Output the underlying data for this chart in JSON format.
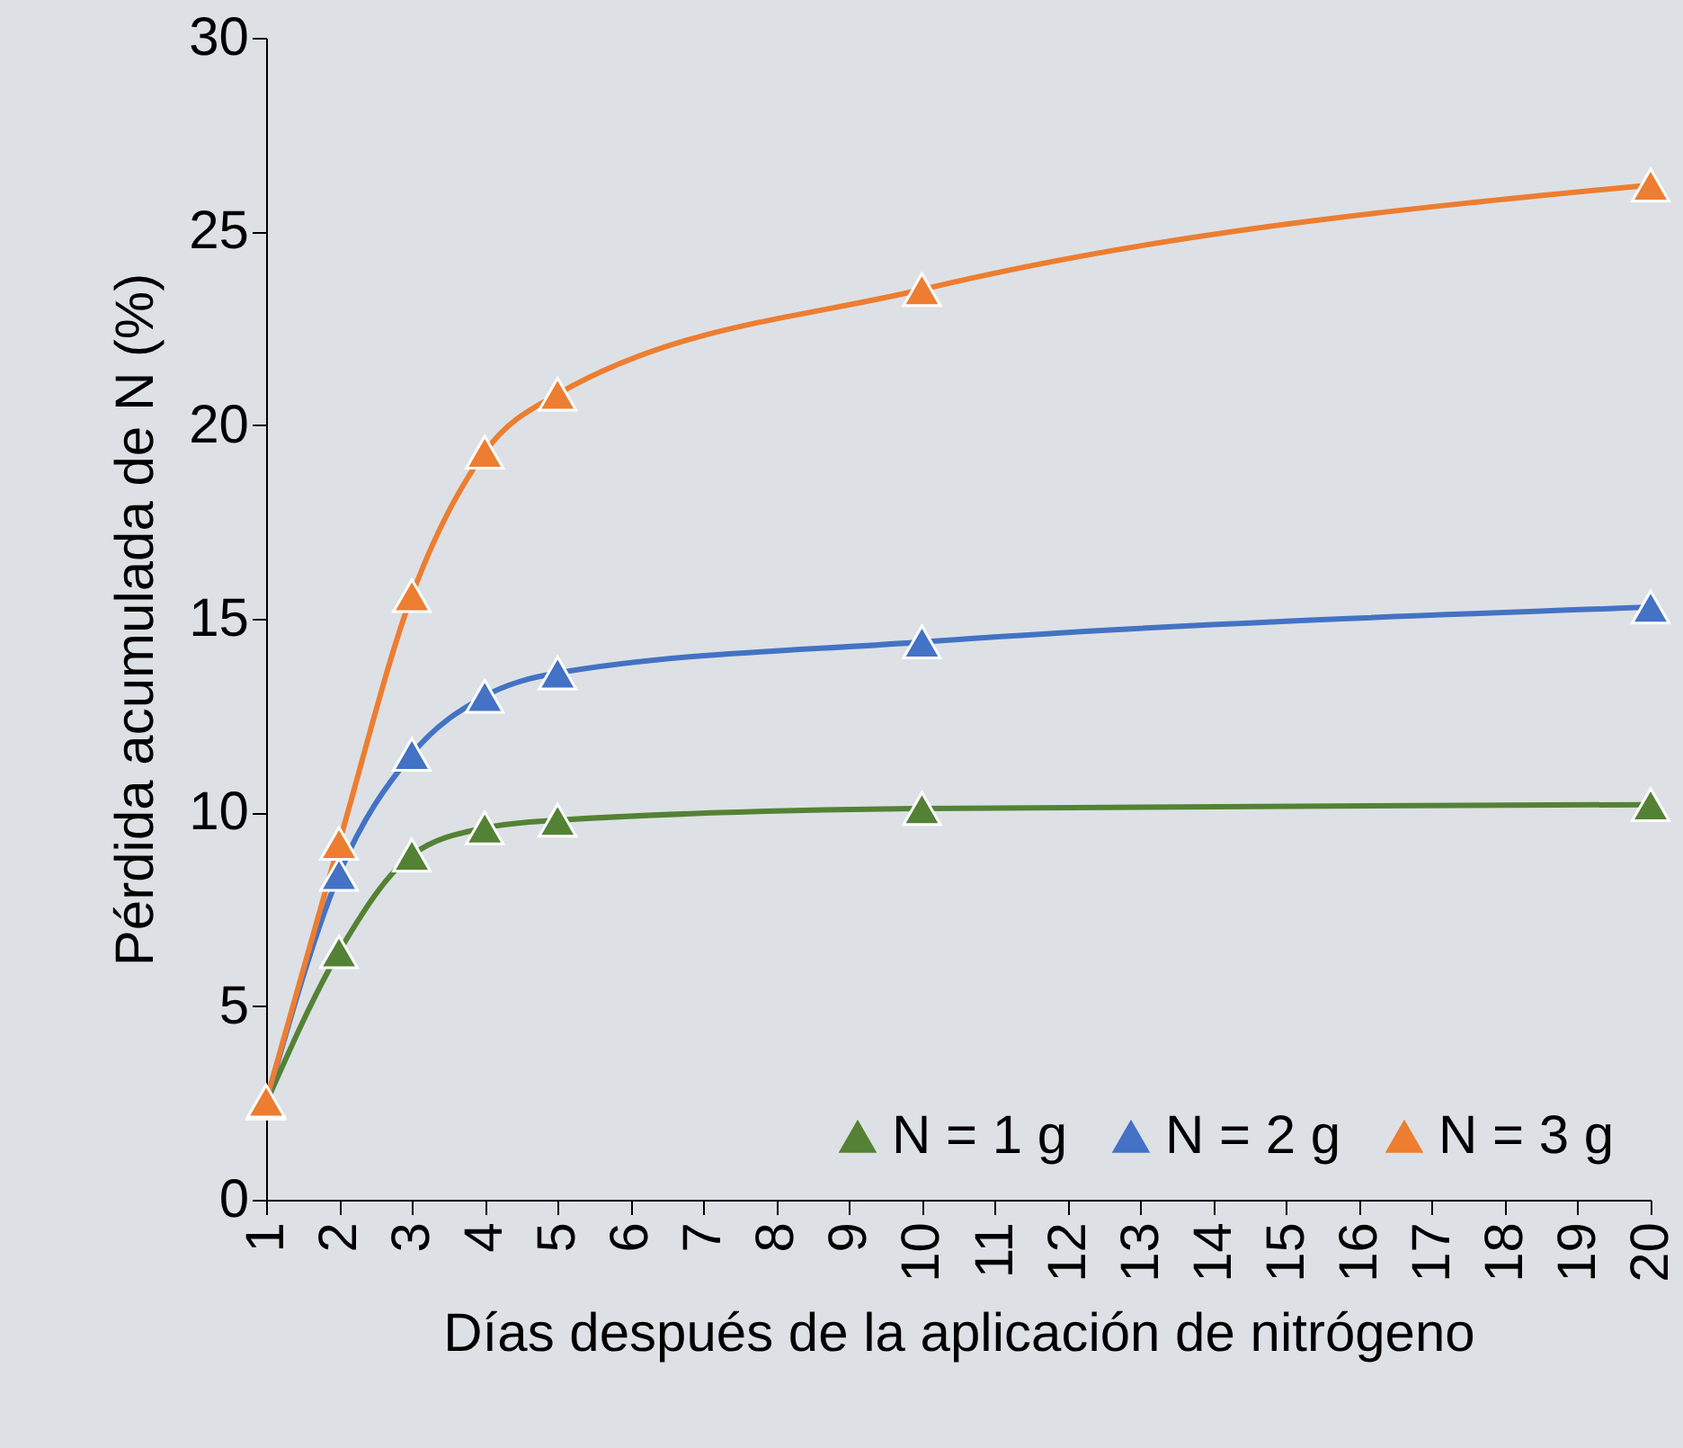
{
  "chart_data": {
    "type": "line",
    "xlabel": "Días después de la aplicación de nitrógeno",
    "ylabel": "Pérdida acumulada de N (%)",
    "x": [
      1,
      2,
      3,
      4,
      5,
      10,
      20
    ],
    "series": [
      {
        "name": "N = 1 g",
        "color": "#548235",
        "values": [
          2.5,
          6.4,
          8.9,
          9.6,
          9.8,
          10.1,
          10.2
        ]
      },
      {
        "name": "N = 2 g",
        "color": "#4472c4",
        "values": [
          2.5,
          8.4,
          11.5,
          13.0,
          13.6,
          14.4,
          15.3
        ]
      },
      {
        "name": "N = 3 g",
        "color": "#ed7d31",
        "values": [
          2.55,
          9.2,
          15.6,
          19.3,
          20.8,
          23.5,
          26.2
        ]
      }
    ],
    "xlim": [
      1,
      20
    ],
    "xticks": [
      1,
      2,
      3,
      4,
      5,
      6,
      7,
      8,
      9,
      10,
      11,
      12,
      13,
      14,
      15,
      16,
      17,
      18,
      19,
      20
    ],
    "ylim": [
      0,
      30
    ],
    "yticks": [
      0,
      5,
      10,
      15,
      20,
      25,
      30
    ],
    "grid": false,
    "legend": "bottom",
    "marker": "triangle",
    "line_style": "solid"
  }
}
